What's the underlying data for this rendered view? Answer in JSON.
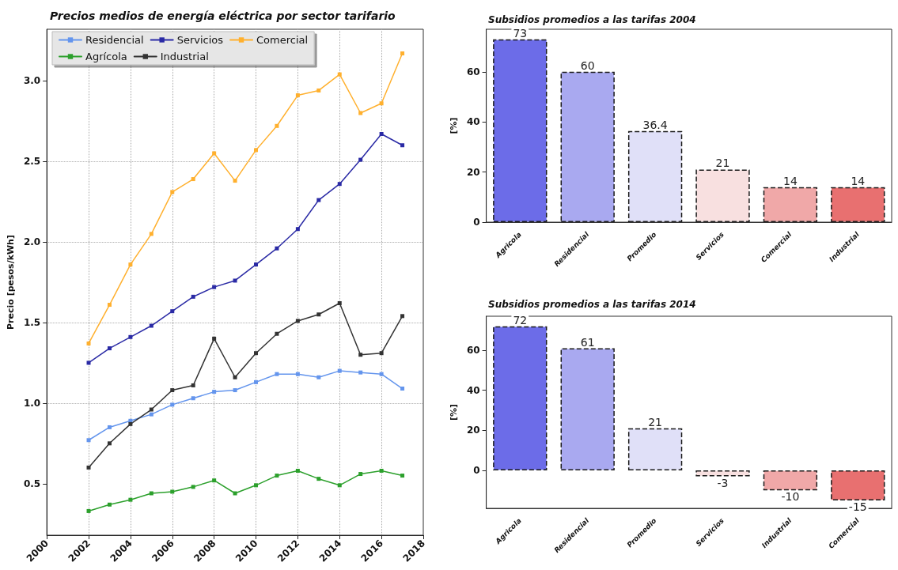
{
  "chart_data": [
    {
      "type": "line",
      "title": "Precios medios de energía eléctrica por sector tarifario",
      "ylabel": "Precio [pesos/kWh]",
      "x": [
        2002,
        2003,
        2004,
        2005,
        2006,
        2007,
        2008,
        2009,
        2010,
        2011,
        2012,
        2013,
        2014,
        2015,
        2016,
        2017
      ],
      "series": [
        {
          "name": "Residencial",
          "color": "#6495ed",
          "values": [
            0.77,
            0.85,
            0.89,
            0.93,
            0.99,
            1.03,
            1.07,
            1.08,
            1.13,
            1.18,
            1.18,
            1.16,
            1.2,
            1.19,
            1.18,
            1.09
          ]
        },
        {
          "name": "Servicios",
          "color": "#2a2aa5",
          "values": [
            1.25,
            1.34,
            1.41,
            1.48,
            1.57,
            1.66,
            1.72,
            1.76,
            1.86,
            1.96,
            2.08,
            2.26,
            2.36,
            2.51,
            2.67,
            2.6
          ]
        },
        {
          "name": "Comercial",
          "color": "#ffb02e",
          "values": [
            1.37,
            1.61,
            1.86,
            2.05,
            2.31,
            2.39,
            2.55,
            2.38,
            2.57,
            2.72,
            2.91,
            2.94,
            3.04,
            2.8,
            2.86,
            3.17
          ]
        },
        {
          "name": "Agrícola",
          "color": "#2ca02c",
          "values": [
            0.33,
            0.37,
            0.4,
            0.44,
            0.45,
            0.48,
            0.52,
            0.44,
            0.49,
            0.55,
            0.58,
            0.53,
            0.49,
            0.56,
            0.58,
            0.55
          ]
        },
        {
          "name": "Industrial",
          "color": "#333333",
          "values": [
            0.6,
            0.75,
            0.87,
            0.96,
            1.08,
            1.11,
            1.4,
            1.16,
            1.31,
            1.43,
            1.51,
            1.55,
            1.62,
            1.3,
            1.31,
            1.54
          ]
        }
      ],
      "xlim": [
        2000,
        2018
      ],
      "xticks": [
        2000,
        2002,
        2004,
        2006,
        2008,
        2010,
        2012,
        2014,
        2016,
        2018
      ],
      "ylim": [
        0.18,
        3.32
      ],
      "yticks": [
        {
          "value": 0.5,
          "label": "0.5"
        },
        {
          "value": 1,
          "label": "1.0"
        },
        {
          "value": 1.5,
          "label": "1.5"
        },
        {
          "value": 2,
          "label": "2.0"
        },
        {
          "value": 2.5,
          "label": "2.5"
        },
        {
          "value": 3,
          "label": "3.0"
        }
      ],
      "grid": true,
      "legend": "top left",
      "marker": "square",
      "line_style": "solid"
    },
    {
      "type": "bar",
      "title": "Subsidios promedios a las tarifas 2004",
      "ylabel": "[%]",
      "categories": [
        "Agricola",
        "Residencial",
        "Promedio",
        "Servicios",
        "Comercial",
        "Industrial"
      ],
      "values": [
        73,
        60,
        36.4,
        21,
        14,
        14
      ],
      "colors": [
        "#6c6ce8",
        "#a9a9f0",
        "#e0e0f8",
        "#f8e0e0",
        "#f0a8a8",
        "#e87070"
      ],
      "ylim": [
        0,
        77
      ],
      "yticks": [
        0,
        20,
        40,
        60
      ],
      "data_labels": true
    },
    {
      "type": "bar",
      "title": "Subsidios promedios a las tarifas 2014",
      "ylabel": "[%]",
      "categories": [
        "Agricola",
        "Residencial",
        "Promedio",
        "Servicios",
        "Industrial",
        "Comercial"
      ],
      "values": [
        72,
        61,
        21,
        -3,
        -10,
        -15
      ],
      "colors": [
        "#6c6ce8",
        "#a9a9f0",
        "#e0e0f8",
        "#f8e0e0",
        "#f0a8a8",
        "#e87070"
      ],
      "ylim": [
        -19,
        77
      ],
      "yticks": [
        0,
        20,
        40,
        60
      ],
      "data_labels": true
    }
  ]
}
